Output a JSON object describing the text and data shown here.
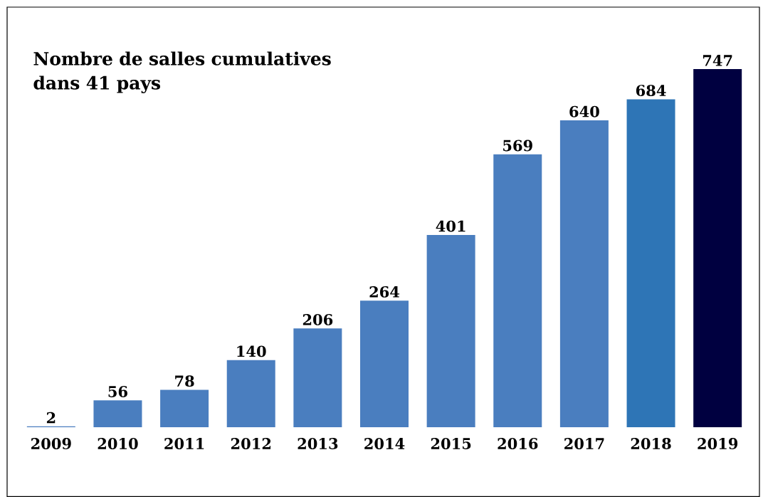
{
  "chart_data": {
    "type": "bar",
    "title": "Nombre de salles cumulatives dans 41 pays",
    "categories": [
      "2009",
      "2010",
      "2011",
      "2012",
      "2013",
      "2014",
      "2015",
      "2016",
      "2017",
      "2018",
      "2019"
    ],
    "values": [
      2,
      56,
      78,
      140,
      206,
      264,
      401,
      569,
      640,
      684,
      747
    ],
    "colors": [
      "#4a7ebf",
      "#4a7ebf",
      "#4a7ebf",
      "#4a7ebf",
      "#4a7ebf",
      "#4a7ebf",
      "#4a7ebf",
      "#4a7ebf",
      "#4a7ebf",
      "#2e75b6",
      "#000040"
    ],
    "data_labels": true
  }
}
